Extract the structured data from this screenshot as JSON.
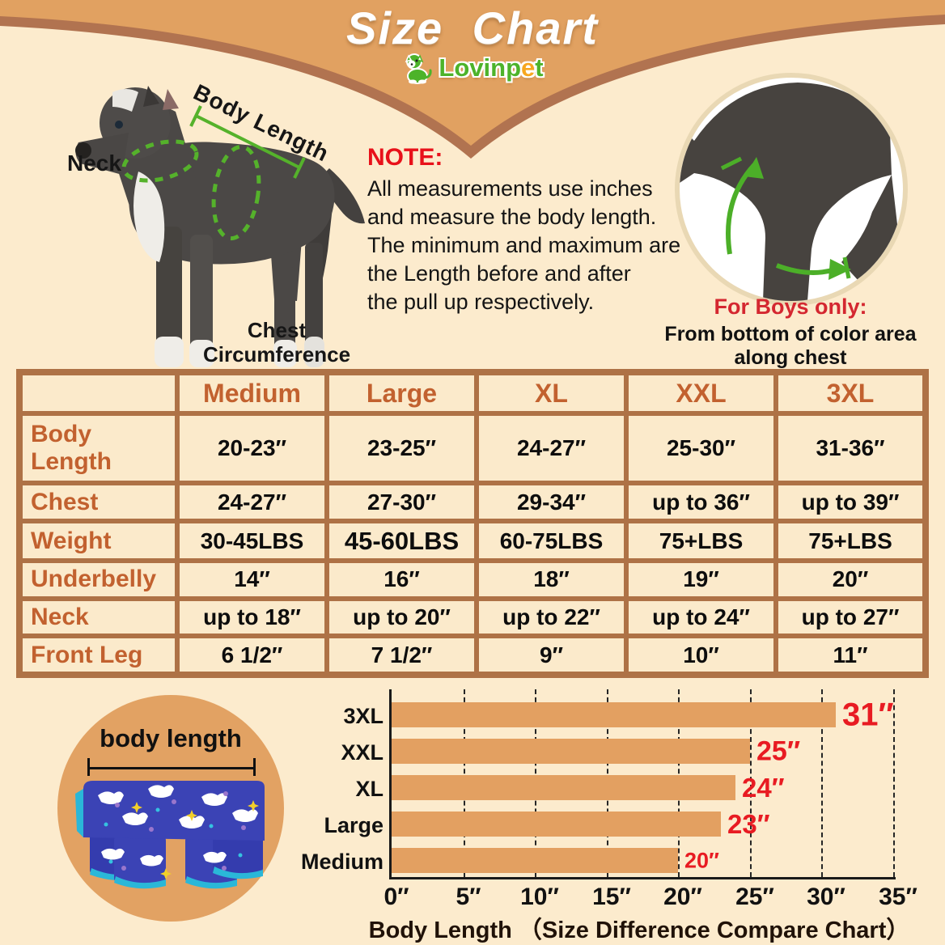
{
  "page": {
    "title": "Size Chart",
    "brand": {
      "name": "Lovinpet",
      "pre": "Lovinp",
      "e": "e",
      "post": "t"
    }
  },
  "colors": {
    "background": "#fcebcd",
    "banner_orange": "#e1a161",
    "banner_stripe": "#b17350",
    "table_border": "#ae7246",
    "table_label": "#c2612f",
    "accent_red": "#e8111a",
    "accent_green": "#55b22b",
    "bar_orange": "#e3a061",
    "pajama_blue": "#3b43b5",
    "pajama_trim": "#2ab7d8"
  },
  "diagram": {
    "neck_label": "Neck",
    "body_length_label": "Body Length",
    "chest_label": "Chest\nCircumference"
  },
  "note": {
    "heading": "NOTE:",
    "body": "All measurements use inches\nand measure the body length.\nThe minimum and maximum are\nthe Length before and after\nthe pull up respectively."
  },
  "boys": {
    "heading": "For Boys only:",
    "line1": "From bottom of color area",
    "line2": "along chest"
  },
  "size_table": {
    "columns": [
      "",
      "Medium",
      "Large",
      "XL",
      "XXL",
      "3XL"
    ],
    "rows": [
      {
        "label": "Body Length",
        "values": [
          "20-23″",
          "23-25″",
          "24-27″",
          "25-30″",
          "31-36″"
        ]
      },
      {
        "label": "Chest",
        "values": [
          "24-27″",
          "27-30″",
          "29-34″",
          "up to 36″",
          "up to 39″"
        ]
      },
      {
        "label": "Weight",
        "values": [
          "30-45LBS",
          "45-60LBS",
          "60-75LBS",
          "75+LBS",
          "75+LBS"
        ]
      },
      {
        "label": "Underbelly",
        "values": [
          "14″",
          "16″",
          "18″",
          "19″",
          "20″"
        ]
      },
      {
        "label": "Neck",
        "values": [
          "up to 18″",
          "up to 20″",
          "up to 22″",
          "up to 24″",
          "up to 27″"
        ]
      },
      {
        "label": "Front Leg",
        "values": [
          "6 1/2″",
          "7 1/2″",
          "9″",
          "10″",
          "11″"
        ]
      }
    ],
    "emphasized_cells": [
      [
        2,
        1
      ]
    ]
  },
  "body_length_circle": {
    "label": "body length"
  },
  "chart_data": {
    "type": "bar",
    "orientation": "horizontal",
    "categories": [
      "3XL",
      "XXL",
      "XL",
      "Large",
      "Medium"
    ],
    "values": [
      31,
      25,
      24,
      23,
      20
    ],
    "value_labels": [
      "31″",
      "25″",
      "24″",
      "23″",
      "20″"
    ],
    "x_ticks": [
      "0″",
      "5″",
      "10″",
      "15″",
      "20″",
      "25″",
      "30″",
      "35″"
    ],
    "x_tick_values": [
      0,
      5,
      10,
      15,
      20,
      25,
      30,
      35
    ],
    "xlim": [
      0,
      35
    ],
    "grid": "dashed vertical every 5 inches",
    "legend": "none",
    "title": "Body Length （Size Difference Compare Chart）",
    "bar_color": "#e3a061",
    "value_label_color": "#e81b22"
  }
}
